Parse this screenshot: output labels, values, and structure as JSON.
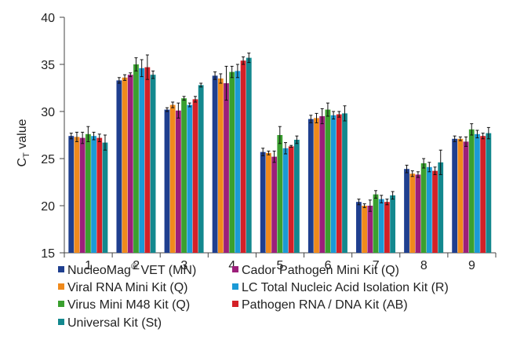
{
  "chart_data": {
    "type": "bar",
    "categories": [
      "1",
      "2",
      "3",
      "4",
      "5",
      "6",
      "7",
      "8",
      "9"
    ],
    "ylabel": "C",
    "ylabel_sub": "T",
    "ylabel_suffix": " value",
    "ylim": [
      15,
      40
    ],
    "yticks": [
      15,
      20,
      25,
      30,
      35,
      40
    ],
    "grid": false,
    "legend_placement": "bottom",
    "series": [
      {
        "name": "NucleoMag",
        "name_sup": "®",
        "name_suffix": " VET (MN)",
        "color": "#1f3f8f",
        "values": [
          27.4,
          33.3,
          30.2,
          33.8,
          25.7,
          29.2,
          20.4,
          23.9,
          27.1
        ],
        "errors": [
          0.3,
          0.3,
          0.2,
          0.4,
          0.4,
          0.4,
          0.3,
          0.4,
          0.3
        ]
      },
      {
        "name": "Viral RNA Mini Kit (Q)",
        "color": "#f08a1c",
        "values": [
          27.3,
          33.6,
          30.7,
          33.5,
          25.6,
          29.3,
          20.0,
          23.4,
          27.1
        ],
        "errors": [
          0.5,
          0.3,
          0.3,
          0.5,
          0.2,
          0.5,
          0.2,
          0.3,
          0.2
        ]
      },
      {
        "name": "Cador Pathogen Mini Kit (Q)",
        "color": "#9c1f7a",
        "values": [
          27.2,
          33.9,
          30.1,
          33.0,
          25.2,
          29.5,
          20.0,
          23.3,
          26.8
        ],
        "errors": [
          0.6,
          0.2,
          0.8,
          1.8,
          0.6,
          0.8,
          0.6,
          0.3,
          0.5
        ]
      },
      {
        "name": "Virus Mini M48 Kit (Q)",
        "color": "#3aa02f",
        "values": [
          27.6,
          35.0,
          31.4,
          34.2,
          27.5,
          30.2,
          21.2,
          24.5,
          28.1
        ],
        "errors": [
          0.8,
          0.7,
          0.2,
          0.6,
          0.9,
          0.7,
          0.4,
          0.5,
          0.6
        ]
      },
      {
        "name": "LC Total Nucleic Acid Isolation Kit (R)",
        "color": "#1b9ad6",
        "values": [
          27.4,
          34.6,
          30.7,
          34.3,
          26.1,
          29.6,
          20.7,
          24.1,
          27.6
        ],
        "errors": [
          0.4,
          0.9,
          0.2,
          0.7,
          0.6,
          0.4,
          0.4,
          0.5,
          0.4
        ]
      },
      {
        "name": "Pathogen RNA / DNA Kit (AB)",
        "color": "#d42027",
        "values": [
          27.2,
          34.7,
          31.3,
          35.4,
          26.3,
          29.7,
          20.4,
          23.7,
          27.4
        ],
        "errors": [
          0.4,
          1.3,
          0.3,
          0.4,
          0.1,
          0.3,
          0.3,
          0.4,
          0.3
        ]
      },
      {
        "name": "Universal Kit (St)",
        "color": "#13888e",
        "values": [
          26.7,
          33.9,
          32.8,
          35.7,
          27.0,
          29.8,
          21.1,
          24.6,
          27.7
        ],
        "errors": [
          0.8,
          0.4,
          0.2,
          0.5,
          0.4,
          0.8,
          0.4,
          1.3,
          0.6
        ]
      }
    ]
  }
}
